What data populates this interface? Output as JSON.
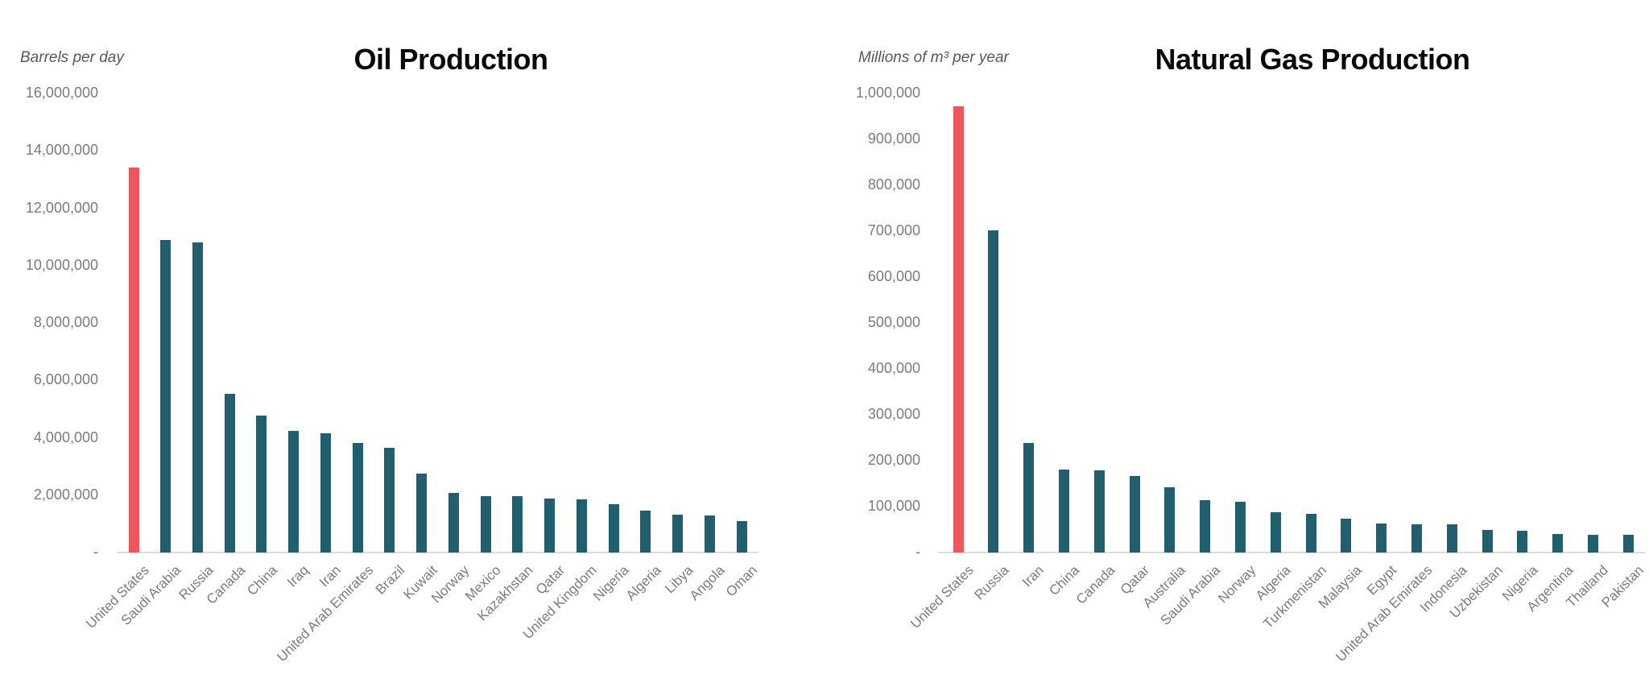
{
  "page": {
    "background": "#ffffff"
  },
  "colors": {
    "highlight_bar": "#F2545B",
    "bar": "#1F5F6E",
    "axis_line": "#DCDCDC",
    "tick_label": "#7B7B7B",
    "unit_label": "#585858",
    "title": "#0A0A0A"
  },
  "chart_data": [
    {
      "type": "bar",
      "title": "Oil Production",
      "unit_label": "Barrels per day",
      "categories": [
        "United States",
        "Saudi Arabia",
        "Russia",
        "Canada",
        "China",
        "Iraq",
        "Iran",
        "United Arab Emirates",
        "Brazil",
        "Kuwait",
        "Norway",
        "Mexico",
        "Kazakhstan",
        "Qatar",
        "United Kingdom",
        "Nigeria",
        "Algeria",
        "Libya",
        "Angola",
        "Oman"
      ],
      "values": [
        13400000,
        10870000,
        10780000,
        5510000,
        4750000,
        4200000,
        4130000,
        3790000,
        3620000,
        2730000,
        2050000,
        1950000,
        1940000,
        1850000,
        1830000,
        1660000,
        1440000,
        1290000,
        1260000,
        1070000
      ],
      "highlight_category": "United States",
      "ylim": [
        0,
        16000000
      ],
      "yticks": [
        {
          "label": "16,000,000",
          "value": 16000000
        },
        {
          "label": "14,000,000",
          "value": 14000000
        },
        {
          "label": "12,000,000",
          "value": 12000000
        },
        {
          "label": "10,000,000",
          "value": 10000000
        },
        {
          "label": "8,000,000",
          "value": 8000000
        },
        {
          "label": "6,000,000",
          "value": 6000000
        },
        {
          "label": "4,000,000",
          "value": 4000000
        },
        {
          "label": "2,000,000",
          "value": 2000000
        },
        {
          "label": "-",
          "value": 0
        }
      ],
      "grid": false,
      "legend": false,
      "xlabel_rotation_deg": 45
    },
    {
      "type": "bar",
      "title": "Natural Gas Production",
      "unit_label": "Millions of m³ per year",
      "categories": [
        "United States",
        "Russia",
        "Iran",
        "China",
        "Canada",
        "Qatar",
        "Australia",
        "Saudi Arabia",
        "Norway",
        "Algeria",
        "Turkmenistan",
        "Malaysia",
        "Egypt",
        "United Arab Emirates",
        "Indonesia",
        "Uzbekistan",
        "Nigeria",
        "Argentina",
        "Thailand",
        "Pakistan"
      ],
      "values": [
        970000,
        700000,
        237000,
        179000,
        177000,
        165000,
        141000,
        112000,
        109000,
        86000,
        82000,
        72000,
        61000,
        60000,
        59000,
        47000,
        46000,
        39000,
        37000,
        36000
      ],
      "highlight_category": "United States",
      "ylim": [
        0,
        1000000
      ],
      "yticks": [
        {
          "label": "1,000,000",
          "value": 1000000
        },
        {
          "label": "900,000",
          "value": 900000
        },
        {
          "label": "800,000",
          "value": 800000
        },
        {
          "label": "700,000",
          "value": 700000
        },
        {
          "label": "600,000",
          "value": 600000
        },
        {
          "label": "500,000",
          "value": 500000
        },
        {
          "label": "400,000",
          "value": 400000
        },
        {
          "label": "300,000",
          "value": 300000
        },
        {
          "label": "200,000",
          "value": 200000
        },
        {
          "label": "100,000",
          "value": 100000
        },
        {
          "label": "-",
          "value": 0
        }
      ],
      "grid": false,
      "legend": false,
      "xlabel_rotation_deg": 45
    }
  ]
}
